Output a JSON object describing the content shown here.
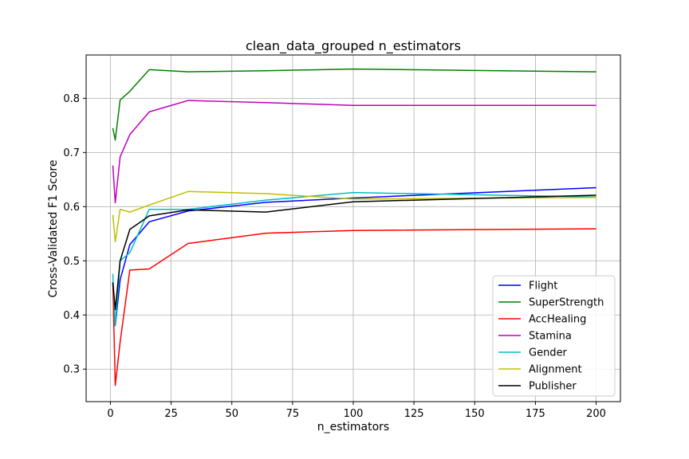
{
  "chart_data": {
    "type": "line",
    "title": "clean_data_grouped n_estimators",
    "xlabel": "n_estimators",
    "ylabel": "Cross-Validated F1 Score",
    "xlim": [
      -10,
      210
    ],
    "ylim": [
      0.24,
      0.88
    ],
    "xticks": [
      0,
      25,
      50,
      75,
      100,
      125,
      150,
      175,
      200
    ],
    "yticks": [
      0.3,
      0.4,
      0.5,
      0.6,
      0.7,
      0.8
    ],
    "grid": true,
    "legend_position": "lower-right",
    "x": [
      1,
      2,
      4,
      8,
      16,
      32,
      64,
      100,
      200
    ],
    "series": [
      {
        "name": "Flight",
        "color": "#0000ff",
        "values": [
          0.46,
          0.38,
          0.465,
          0.53,
          0.572,
          0.592,
          0.608,
          0.616,
          0.635
        ]
      },
      {
        "name": "SuperStrength",
        "color": "#008000",
        "values": [
          0.745,
          0.723,
          0.797,
          0.813,
          0.853,
          0.849,
          0.851,
          0.854,
          0.849
        ]
      },
      {
        "name": "AccHealing",
        "color": "#ff0000",
        "values": [
          0.46,
          0.27,
          0.35,
          0.483,
          0.485,
          0.532,
          0.551,
          0.556,
          0.559
        ]
      },
      {
        "name": "Stamina",
        "color": "#bf00bf",
        "values": [
          0.676,
          0.607,
          0.692,
          0.733,
          0.775,
          0.796,
          0.792,
          0.787,
          0.787
        ]
      },
      {
        "name": "Gender",
        "color": "#00bfbf",
        "values": [
          0.476,
          0.38,
          0.5,
          0.515,
          0.595,
          0.595,
          0.612,
          0.626,
          0.618
        ]
      },
      {
        "name": "Alignment",
        "color": "#bfbf00",
        "values": [
          0.585,
          0.535,
          0.595,
          0.59,
          0.603,
          0.628,
          0.624,
          0.614,
          0.617
        ]
      },
      {
        "name": "Publisher",
        "color": "#000000",
        "values": [
          0.46,
          0.41,
          0.5,
          0.558,
          0.583,
          0.594,
          0.59,
          0.609,
          0.621
        ]
      }
    ]
  }
}
